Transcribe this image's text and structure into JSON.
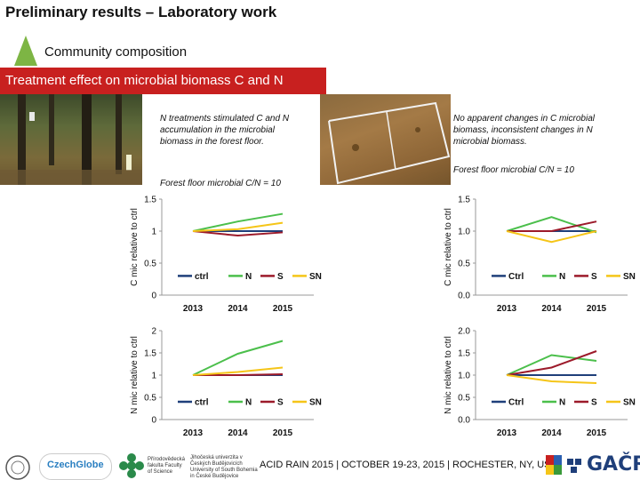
{
  "header": {
    "title": "Preliminary results – Laboratory work",
    "subtitle": "Community composition",
    "banner": "Treatment effect on microbial biomass C and N"
  },
  "notes": {
    "left": "N treatments stimulated C and N accumulation in the microbial biomass in the forest floor.",
    "left_cn": "Forest floor microbial C/N = 10",
    "right": "No apparent changes in C microbial biomass, inconsistent changes in N microbial biomass.",
    "right_cn": "Forest floor microbial C/N = 10"
  },
  "footer": {
    "text": "ACID RAIN 2015 | OCTOBER 19-23, 2015 | ROCHESTER, NY, USA",
    "logo_czechglobe": "CzechGlobe",
    "logo_gacr": "GAČR",
    "logo_faculty": "Přírodovědecká fakulta Faculty of Science",
    "logo_university": "Jihočeská univerzita v Českých Budějovicích University of South Bohemia in České Budějovice"
  },
  "colors": {
    "ctrl": "#1f3f7a",
    "N": "#4bbf4b",
    "S": "#9c1a2a",
    "SN": "#f5c518",
    "banner": "#c8201f",
    "triangle": "#7db544"
  },
  "chart_data": [
    {
      "type": "line",
      "x": [
        "2013",
        "2014",
        "2015"
      ],
      "ylabel": "C mic relative to ctrl",
      "ylim": [
        0,
        1.5
      ],
      "yticks": [
        "0",
        "0.5",
        "1",
        "1.5"
      ],
      "legend": "bottom-inside",
      "series": [
        {
          "name": "ctrl",
          "values": [
            1.0,
            1.0,
            1.0
          ]
        },
        {
          "name": "N",
          "values": [
            1.0,
            1.15,
            1.27
          ]
        },
        {
          "name": "S",
          "values": [
            1.0,
            0.93,
            0.98
          ]
        },
        {
          "name": "SN",
          "values": [
            1.0,
            1.03,
            1.13
          ]
        }
      ]
    },
    {
      "type": "line",
      "x": [
        "2013",
        "2014",
        "2015"
      ],
      "ylabel": "C mic relative to ctrl",
      "ylim": [
        0,
        1.5
      ],
      "yticks": [
        "0.0",
        "0.5",
        "1.0",
        "1.5"
      ],
      "legend": "bottom-inside",
      "series": [
        {
          "name": "Ctrl",
          "values": [
            1.0,
            1.0,
            1.0
          ]
        },
        {
          "name": "N",
          "values": [
            1.0,
            1.22,
            0.98
          ]
        },
        {
          "name": "S",
          "values": [
            1.0,
            1.0,
            1.15
          ]
        },
        {
          "name": "SN",
          "values": [
            1.0,
            0.83,
            1.0
          ]
        }
      ]
    },
    {
      "type": "line",
      "x": [
        "2013",
        "2014",
        "2015"
      ],
      "ylabel": "N mic relative to ctrl",
      "ylim": [
        0,
        2
      ],
      "yticks": [
        "0",
        "0.5",
        "1",
        "1.5",
        "2"
      ],
      "legend": "bottom-inside",
      "series": [
        {
          "name": "ctrl",
          "values": [
            1.0,
            1.0,
            1.0
          ]
        },
        {
          "name": "N",
          "values": [
            1.0,
            1.48,
            1.77
          ]
        },
        {
          "name": "S",
          "values": [
            1.0,
            1.0,
            1.02
          ]
        },
        {
          "name": "SN",
          "values": [
            1.0,
            1.07,
            1.17
          ]
        }
      ]
    },
    {
      "type": "line",
      "x": [
        "2013",
        "2014",
        "2015"
      ],
      "ylabel": "N mic relative to ctrl",
      "ylim": [
        0,
        2
      ],
      "yticks": [
        "0.0",
        "0.5",
        "1.0",
        "1.5",
        "2.0"
      ],
      "legend": "bottom-inside",
      "series": [
        {
          "name": "Ctrl",
          "values": [
            1.0,
            1.0,
            1.0
          ]
        },
        {
          "name": "N",
          "values": [
            1.0,
            1.45,
            1.32
          ]
        },
        {
          "name": "S",
          "values": [
            1.0,
            1.17,
            1.54
          ]
        },
        {
          "name": "SN",
          "values": [
            1.0,
            0.86,
            0.82
          ]
        }
      ]
    }
  ]
}
